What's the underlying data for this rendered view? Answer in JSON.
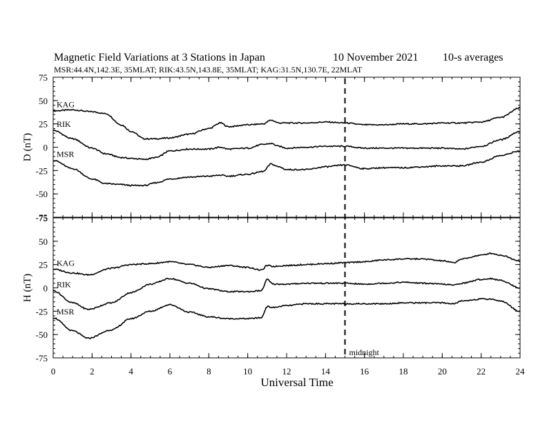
{
  "header": {
    "title": "Magnetic Field Variations at 3 Stations in Japan",
    "date": "10 November 2021",
    "averaging": "10-s averages",
    "stations_line": "MSR:44.4N,142.3E, 35MLAT;  RIK:43.5N,143.8E, 35MLAT;  KAG:31.5N,130.7E, 22MLAT"
  },
  "annotation": "midnight",
  "chart_data": [
    {
      "type": "line",
      "panel": "top",
      "ylabel": "D (nT)",
      "xlabel": "",
      "xlim": [
        0,
        24
      ],
      "ylim": [
        -75,
        75
      ],
      "yticks": [
        -75,
        -50,
        -25,
        0,
        25,
        50,
        75
      ],
      "xticks": [
        0,
        2,
        4,
        6,
        8,
        10,
        12,
        14,
        16,
        18,
        20,
        22,
        24
      ],
      "x": [
        0,
        1,
        2,
        2.7,
        3.5,
        4,
        4.7,
        5.3,
        6,
        7,
        8,
        8.6,
        9,
        10,
        10.8,
        11.2,
        11.6,
        12,
        13,
        14,
        15,
        16,
        17,
        18,
        19,
        20,
        21,
        22,
        23,
        24
      ],
      "series": [
        {
          "name": "KAG",
          "values": [
            39,
            40,
            38,
            36,
            24,
            17,
            9,
            9,
            10,
            14,
            20,
            26,
            22,
            24,
            25,
            29,
            26,
            26,
            26,
            27,
            26,
            24,
            24,
            25,
            25,
            26,
            26,
            27,
            32,
            42
          ]
        },
        {
          "name": "RIK",
          "values": [
            18,
            9,
            -1,
            -7,
            -11,
            -12,
            -13,
            -11,
            -4,
            -2,
            -2,
            0,
            -2,
            -1,
            3,
            4,
            1,
            -1,
            0,
            1,
            1,
            -1,
            -1,
            -1,
            -1,
            -1,
            -2,
            1,
            8,
            17
          ]
        },
        {
          "name": "MSR",
          "values": [
            -14,
            -23,
            -34,
            -39,
            -40,
            -41,
            -41,
            -38,
            -34,
            -32,
            -31,
            -30,
            -31,
            -29,
            -26,
            -18,
            -21,
            -24,
            -24,
            -21,
            -19,
            -23,
            -22,
            -22,
            -21,
            -20,
            -20,
            -16,
            -9,
            -4
          ]
        }
      ]
    },
    {
      "type": "line",
      "panel": "bottom",
      "ylabel": "H (nT)",
      "xlabel": "Universal Time",
      "xlim": [
        0,
        24
      ],
      "ylim": [
        -75,
        75
      ],
      "yticks": [
        -75,
        -50,
        -25,
        0,
        25,
        50,
        75
      ],
      "xticks": [
        0,
        2,
        4,
        6,
        8,
        10,
        12,
        14,
        16,
        18,
        20,
        22,
        24
      ],
      "x": [
        0,
        1,
        1.8,
        3,
        4,
        5,
        6,
        7,
        8,
        9,
        10,
        10.7,
        11,
        11.3,
        12,
        13,
        14,
        15,
        16,
        17,
        18,
        19,
        20,
        20.6,
        21,
        22,
        22.5,
        23,
        24
      ],
      "series": [
        {
          "name": "KAG",
          "values": [
            20,
            16,
            14,
            21,
            25,
            26,
            28,
            25,
            22,
            24,
            22,
            19,
            24,
            23,
            24,
            25,
            26,
            27,
            28,
            30,
            31,
            31,
            29,
            27,
            31,
            35,
            37,
            35,
            29
          ]
        },
        {
          "name": "RIK",
          "values": [
            -3,
            -16,
            -23,
            -16,
            -5,
            4,
            10,
            5,
            -1,
            -4,
            -4,
            -3,
            9,
            4,
            4,
            5,
            5,
            5,
            4,
            5,
            6,
            5,
            4,
            3,
            5,
            9,
            10,
            8,
            0
          ]
        },
        {
          "name": "MSR",
          "values": [
            -32,
            -46,
            -54,
            -45,
            -33,
            -25,
            -18,
            -26,
            -31,
            -33,
            -33,
            -32,
            -20,
            -21,
            -19,
            -17,
            -17,
            -17,
            -17,
            -17,
            -16,
            -16,
            -16,
            -17,
            -14,
            -12,
            -12,
            -14,
            -25
          ]
        }
      ]
    }
  ]
}
